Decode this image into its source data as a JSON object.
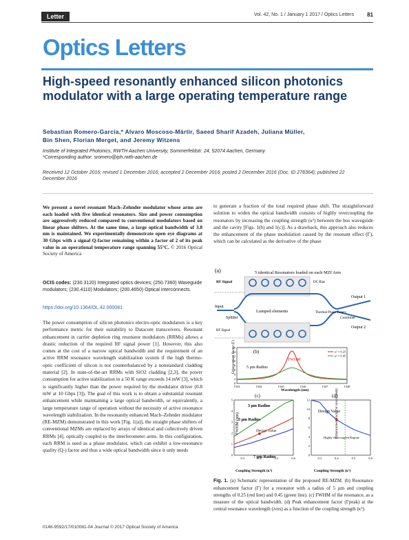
{
  "header": {
    "section_label": "Letter",
    "issue": "Vol. 42, No. 1 / January 1 2017 / Optics Letters",
    "page_number": "81"
  },
  "journal": {
    "name": "Optics Letters"
  },
  "article": {
    "title": "High-speed resonantly enhanced silicon photonics modulator with a large operating temperature range",
    "authors_line1": "Sebastian Romero-García,* Alvaro Moscoso-Mártir, Saeed Sharif Azadeh, Juliana Müller,",
    "authors_line2": "Bin Shen, Florian Merget, and Jeremy Witzens",
    "affiliation": "Institute of Integrated Photonics, RWTH Aachen University, Sommerfeldstr. 24, 52074 Aachen, Germany",
    "corresponding": "*Corresponding author: sromero@iph.rwth-aachen.de",
    "dates": "Received 12 October 2016; revised 1 December 2016; accepted 2 December 2016; posted 2 December 2016 (Doc. ID 278364); published 22 December 2016",
    "abstract": "We present a novel resonant Mach–Zehnder modulator whose arms are each loaded with five identical resonators. Size and power consumption are aggressively reduced compared to conventional modulators based on linear phase shifters. At the same time, a large optical bandwidth of 3.8 nm is maintained. We experimentally demonstrate open eye diagrams at 30 Gbps with a signal Q-factor remaining within a factor of 2 of its peak value in an operational temperature range spanning 55°C.",
    "copyright": "© 2016 Optical Society of America",
    "ocis_label": "OCIS codes:",
    "ocis": "(230.3120) Integrated optics devices; (250.7360) Waveguide modulators; (230.4110) Modulators; (200.4650) Optical interconnects.",
    "doi": "https://doi.org/10.1364/OL.42.000081",
    "body_left": "The power consumption of silicon photonics electro-optic modulators is a key performance metric for their suitability to Datacom transceivers. Resonant enhancement in carrier depletion ring resonator modulators (RRMs) allows a drastic reduction of the required RF signal power [1]. However, this also comes at the cost of a narrow optical bandwidth and the requirement of an active RRM resonance wavelength stabilization system if the high thermo-optic coefficient of silicon is not counterbalanced by a nonstandard cladding material [2]. In state-of-the-art RRMs with SiO2 cladding [2,3], the power consumption for active stabilization in a 50 K range exceeds 14 mW [3], which is significantly higher than the power required by the modulator driver (0.8 mW at 10 Gbps [3]). The goal of this work is to obtain a substantial resonant enhancement while maintaining a large optical bandwidth, or equivalently, a large temperature range of operation without the necessity of active resonance wavelength stabilization. In the resonantly enhanced Mach–Zehnder modulator (RE-MZM) demonstrated in this work [Fig. 1(a)], the straight phase shifters of conventional MZMs are replaced by arrays of identical and collectively driven RRMs [4], optically coupled to the interferometer arms. In this configuration, each RRM is used as a phase modulator, which can exhibit a low-resonance quality (Q-) factor and thus a wide optical bandwidth since it only needs",
    "body_right": "to generate a fraction of the total required phase shift. The straightforward solution to widen the optical bandwidth consists of highly overcoupling the resonators by increasing the coupling strength (κ²) between the bus waveguide and the cavity [Figs. 1(b) and 1(c)]. As a drawback, this approach also reduces the enhancement of the phase modulation caused by the resonant effect (Γ), which can be calculated as the derivative of the phase",
    "caption_label": "Fig. 1.",
    "caption": "(a) Schematic representation of the proposed RE-MZM. (b) Resonance enhancement factor (Γ) for a resonator with a radius of 5 µm and coupling strengths of 0.25 (red line) and 0.45 (green line). (c) FWHM of the resonance, as a measure of the optical bandwidth. (d) Peak enhancement factor (Γpeak) at the central resonance wavelength (λres) as a function of the coupling strength (κ²).",
    "footer": "0146-9592/17/010081-04 Journal © 2017 Optical Society of America"
  },
  "figure": {
    "panel_a_label": "(a)",
    "panel_a_title": "5 identical Resonators loaded on each MZI Arm",
    "rf_signal_top": "RF Signal",
    "rf_signal_bottom": "RF Signal",
    "dc_bias": "DC Bias",
    "input": "Input",
    "splitter": "Splitter",
    "lumped": "Lumped elements",
    "thermal": "Thermal Phase Tuners",
    "combiner": "Combiner",
    "output1": "Output 1",
    "output2": "Output 2",
    "panel_b_label": "(b)",
    "panel_c_label": "(c)",
    "panel_d_label": "(d)",
    "fwhm_label": "FWHM",
    "radius_label": "5 µm Radius",
    "design_value": "Design Value",
    "highly_overcoupled": "Highly Overcoupled Regime",
    "label_3um": "3 µm Radius",
    "label_5um": "5 µm Radius",
    "label_7um": "7 µm Radius"
  },
  "chart_data": [
    {
      "type": "line",
      "panel": "(b)",
      "xlabel": "Wavelength (nm)",
      "ylabel": "Enhancement Factor (Γ)",
      "x_ticks": [
        "1543",
        "1544",
        "1545",
        "1546",
        "1547",
        "1548"
      ],
      "y_ticks": [
        "0",
        "2",
        "4",
        "6",
        "8",
        "10",
        "12",
        "14",
        "16"
      ],
      "xlim": [
        1543,
        1548
      ],
      "ylim": [
        0,
        16
      ],
      "series": [
        {
          "name": "κ² = 0.25",
          "color": "#d62020",
          "center": 1545.5,
          "peak": 14.5,
          "hwhm": 0.35,
          "base": 1.5
        },
        {
          "name": "κ² = 0.45",
          "color": "#2e9a2e",
          "center": 1545.5,
          "peak": 7.0,
          "hwhm": 0.7,
          "base": 1.5
        }
      ]
    },
    {
      "type": "line",
      "panel": "(c)",
      "xlabel": "Coupling Strength (κ²)",
      "ylabel": "FWHM (nm)",
      "x_ticks": [
        "0.3",
        "0.4",
        "0.5",
        "0.6"
      ],
      "y_ticks": [
        "0",
        "1",
        "2",
        "3",
        "4",
        "5"
      ],
      "xlim": [
        0.25,
        0.6
      ],
      "ylim": [
        0,
        5
      ],
      "series": [
        {
          "name": "3 µm Radius",
          "color": "#2e9a2e",
          "x": [
            0.25,
            0.3,
            0.35,
            0.4,
            0.45,
            0.5,
            0.55,
            0.6
          ],
          "y": [
            1.7,
            2.2,
            2.7,
            3.2,
            3.7,
            4.2,
            4.7,
            5.2
          ]
        },
        {
          "name": "5 µm Radius",
          "color": "#d62020",
          "x": [
            0.25,
            0.3,
            0.35,
            0.4,
            0.45,
            0.5,
            0.55,
            0.6
          ],
          "y": [
            1.0,
            1.3,
            1.6,
            1.95,
            2.3,
            2.65,
            3.0,
            3.4
          ]
        },
        {
          "name": "7 µm Radius",
          "color": "#2030c0",
          "x": [
            0.25,
            0.3,
            0.35,
            0.4,
            0.45,
            0.5,
            0.55,
            0.6
          ],
          "y": [
            0.7,
            0.9,
            1.1,
            1.35,
            1.6,
            1.85,
            2.1,
            2.4
          ]
        }
      ]
    },
    {
      "type": "line",
      "panel": "(d)",
      "xlabel": "Coupling Strength (κ²)",
      "ylabel": "Enhancement Factor at λres (Γpeak)",
      "x_ticks": [
        "0.3",
        "0.4",
        "0.5",
        "0.6"
      ],
      "y_ticks": [
        "0",
        "2",
        "4",
        "6",
        "8",
        "10",
        "12"
      ],
      "xlim": [
        0.25,
        0.6
      ],
      "ylim": [
        0,
        12
      ],
      "series": [
        {
          "name": "Γpeak",
          "color": "#2030c0",
          "x": [
            0.25,
            0.3,
            0.35,
            0.4,
            0.45,
            0.5,
            0.55,
            0.6
          ],
          "y": [
            14.5,
            11.5,
            9.3,
            7.7,
            6.6,
            5.6,
            4.9,
            4.3
          ]
        }
      ]
    }
  ]
}
